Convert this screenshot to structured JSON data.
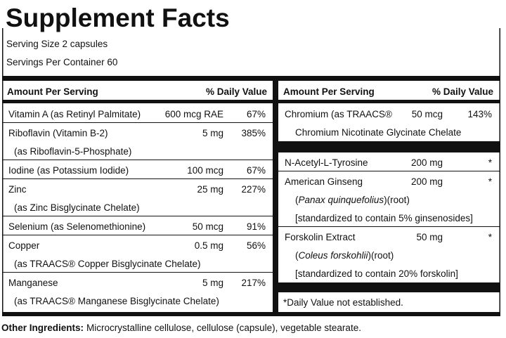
{
  "title": "Supplement Facts",
  "serving_size": "Serving Size 2 capsules",
  "servings_per_container": "Servings Per Container 60",
  "left": {
    "header": {
      "amount": "Amount Per Serving",
      "dv": "% Daily Value"
    },
    "groups": [
      [
        {
          "name": "Vitamin A (as Retinyl Palmitate)",
          "amount": "600 mcg RAE",
          "dv": "67%"
        },
        {
          "name": "Riboflavin (Vitamin B-2)",
          "amount": "5 mg",
          "dv": "385%",
          "sub": [
            [
              {
                "text": "(as Riboflavin-5-Phosphate)"
              }
            ]
          ]
        },
        {
          "name": "Iodine (as Potassium Iodide)",
          "amount": "100 mcg",
          "dv": "67%"
        },
        {
          "name": "Zinc",
          "amount": "25 mg",
          "dv": "227%",
          "sub": [
            [
              {
                "text": "(as Zinc Bisglycinate Chelate)"
              }
            ]
          ]
        },
        {
          "name": "Selenium (as Selenomethionine)",
          "amount": "50 mcg",
          "dv": "91%"
        },
        {
          "name": "Copper",
          "amount": "0.5 mg",
          "dv": "56%",
          "sub": [
            [
              {
                "text": "(as TRAACS® Copper Bisglycinate Chelate)"
              }
            ]
          ]
        },
        {
          "name": "Manganese",
          "amount": "5 mg",
          "dv": "217%",
          "sub": [
            [
              {
                "text": "(as TRAACS® Manganese Bisglycinate Chelate)"
              }
            ]
          ]
        }
      ]
    ]
  },
  "right": {
    "header": {
      "amount": "Amount Per Serving",
      "dv": "% Daily Value"
    },
    "groups": [
      [
        {
          "name": "Chromium (as TRAACS®",
          "amount": "50 mcg",
          "dv": "143%",
          "sub": [
            [
              {
                "text": "Chromium Nicotinate Glycinate Chelate"
              }
            ]
          ]
        }
      ],
      [
        {
          "name": "N-Acetyl-L-Tyrosine",
          "amount": "200 mg",
          "dv": "*"
        },
        {
          "name": "American Ginseng",
          "amount": "200 mg",
          "dv": "*",
          "sub": [
            [
              {
                "text": "("
              },
              {
                "text": "Panax quinquefolius",
                "italic": true
              },
              {
                "text": ")(root)"
              }
            ],
            [
              {
                "text": "[standardized to contain 5% ginsenosides]"
              }
            ]
          ]
        },
        {
          "name": "Forskolin Extract",
          "amount": "50 mg",
          "dv": "*",
          "sub": [
            [
              {
                "text": "("
              },
              {
                "text": "Coleus forskohlii",
                "italic": true
              },
              {
                "text": ")(root)"
              }
            ],
            [
              {
                "text": "[standardized to contain 20% forskolin]"
              }
            ]
          ]
        }
      ]
    ],
    "footnote": "*Daily Value not established."
  },
  "other_ingredients": {
    "label": "Other Ingredients:",
    "text": "Microcrystalline cellulose, cellulose (capsule), vegetable stearate."
  }
}
